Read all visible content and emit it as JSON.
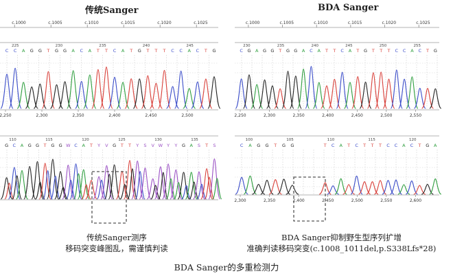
{
  "left": {
    "title": "传统Sanger",
    "ref_ticks": [
      "c.1000",
      "c.1005",
      "c.1010",
      "c.1015",
      "c.1020",
      "c.1025"
    ],
    "top_bases": "CCAGGTGGACATTCATGTTTCCACTG",
    "top_base_ticks": [
      "225",
      "230",
      "235",
      "240",
      "245"
    ],
    "top_x_ticks": [
      "2,250",
      "2,300",
      "2,350",
      "2,400",
      "2,450",
      "2,500"
    ],
    "bottom_bases": "GCAGGTGGWCATYVGTTYSVWYYGASTS",
    "bottom_base_ticks": [
      "110",
      "115",
      "120",
      "125",
      "130",
      "135"
    ],
    "caption_line1": "传统Sanger测序",
    "caption_line2": "移码突变峰图乱，需谨慎判读"
  },
  "right": {
    "title": "BDA Sanger",
    "ref_ticks": [
      "c.1000",
      "c.1005",
      "c.1010",
      "c.1015",
      "c.1020",
      "c.1025"
    ],
    "top_bases": "CGAGGTGGACATTCATGTTTCCACTG",
    "top_base_ticks": [
      "230",
      "235",
      "240",
      "245",
      "250",
      "255"
    ],
    "top_x_ticks": [
      "2,250",
      "2,300",
      "2,350",
      "2,400",
      "2,450",
      "2,500",
      "2,550"
    ],
    "bottom_bases_left": "CAGGTGG",
    "bottom_bases_right": "TCATCTTTCCACTGA",
    "bottom_base_ticks": [
      "100",
      "105",
      "110",
      "115",
      "120"
    ],
    "bottom_x_ticks": [
      "2,300",
      "2,350",
      "2,400",
      "2,450",
      "2,500",
      "2,550",
      "2,600"
    ],
    "caption_line1": "BDA Sanger抑制野生型序列扩增",
    "caption_line2": "准确判读移码突变(c.1008_1011del,p.S338Lfs*28)"
  },
  "footer": "BDA Sanger的多重检测力",
  "colors": {
    "A": "#2e9e3e",
    "C": "#3a4cc9",
    "G": "#222222",
    "T": "#d9403a",
    "N": "#9a4fc4",
    "box": "#555555"
  }
}
